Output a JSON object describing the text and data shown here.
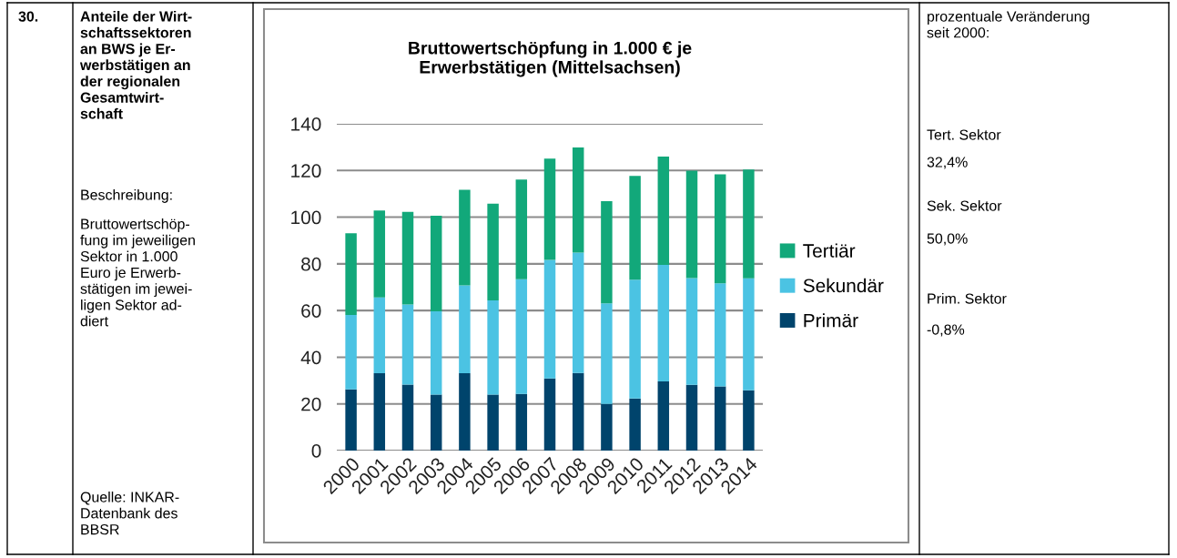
{
  "chart_data": {
    "type": "bar",
    "stacked": true,
    "title": "Bruttowertschöpfung in 1.000 € je\nErwerbstätigen (Mittelsachsen)",
    "categories": [
      "2000",
      "2001",
      "2002",
      "2003",
      "2004",
      "2005",
      "2006",
      "2007",
      "2008",
      "2009",
      "2010",
      "2011",
      "2012",
      "2013",
      "2014"
    ],
    "series": [
      {
        "name": "Primär",
        "color": "#00446c",
        "values": [
          26.2,
          33.1,
          28.3,
          24.0,
          33.1,
          24.0,
          24.3,
          30.9,
          33.2,
          20.0,
          22.3,
          29.6,
          28.2,
          27.5,
          25.8
        ]
      },
      {
        "name": "Sekundär",
        "color": "#4bc3e3",
        "values": [
          31.9,
          32.5,
          34.3,
          35.7,
          37.7,
          40.3,
          49.1,
          50.8,
          51.6,
          43.1,
          50.9,
          50.0,
          45.7,
          44.2,
          48.0
        ]
      },
      {
        "name": "Tertiär",
        "color": "#12a87a",
        "values": [
          35.0,
          37.3,
          39.7,
          40.9,
          40.9,
          41.5,
          42.7,
          43.4,
          45.1,
          43.8,
          44.5,
          46.4,
          46.0,
          46.7,
          46.6
        ]
      }
    ],
    "ylim": [
      0,
      140
    ],
    "yticks": [
      0,
      20,
      40,
      60,
      80,
      100,
      120,
      140
    ],
    "grid": "y",
    "legend": "right",
    "annotations": [
      "30.",
      "Anteile der Wirt-\nschaftssektoren\nan BWS je Er-\nwerbstätigen an\nder regionalen\nGesamtwirt-\nschaft",
      "Beschreibung:",
      "Bruttowertschöp-\nfung im jeweiligen\nSektor in 1.000\nEuro je Erwerb-\nstätigen im jewei-\nligen Sektor ad-\ndiert",
      "Quelle: INKAR-\nDatenbank des\nBBSR",
      "prozentuale Veränderung\nseit 2000:",
      "Tert. Sektor",
      "32,4%",
      "Sek. Sektor",
      "50,0%",
      "Prim. Sektor",
      "-0,8%"
    ]
  }
}
